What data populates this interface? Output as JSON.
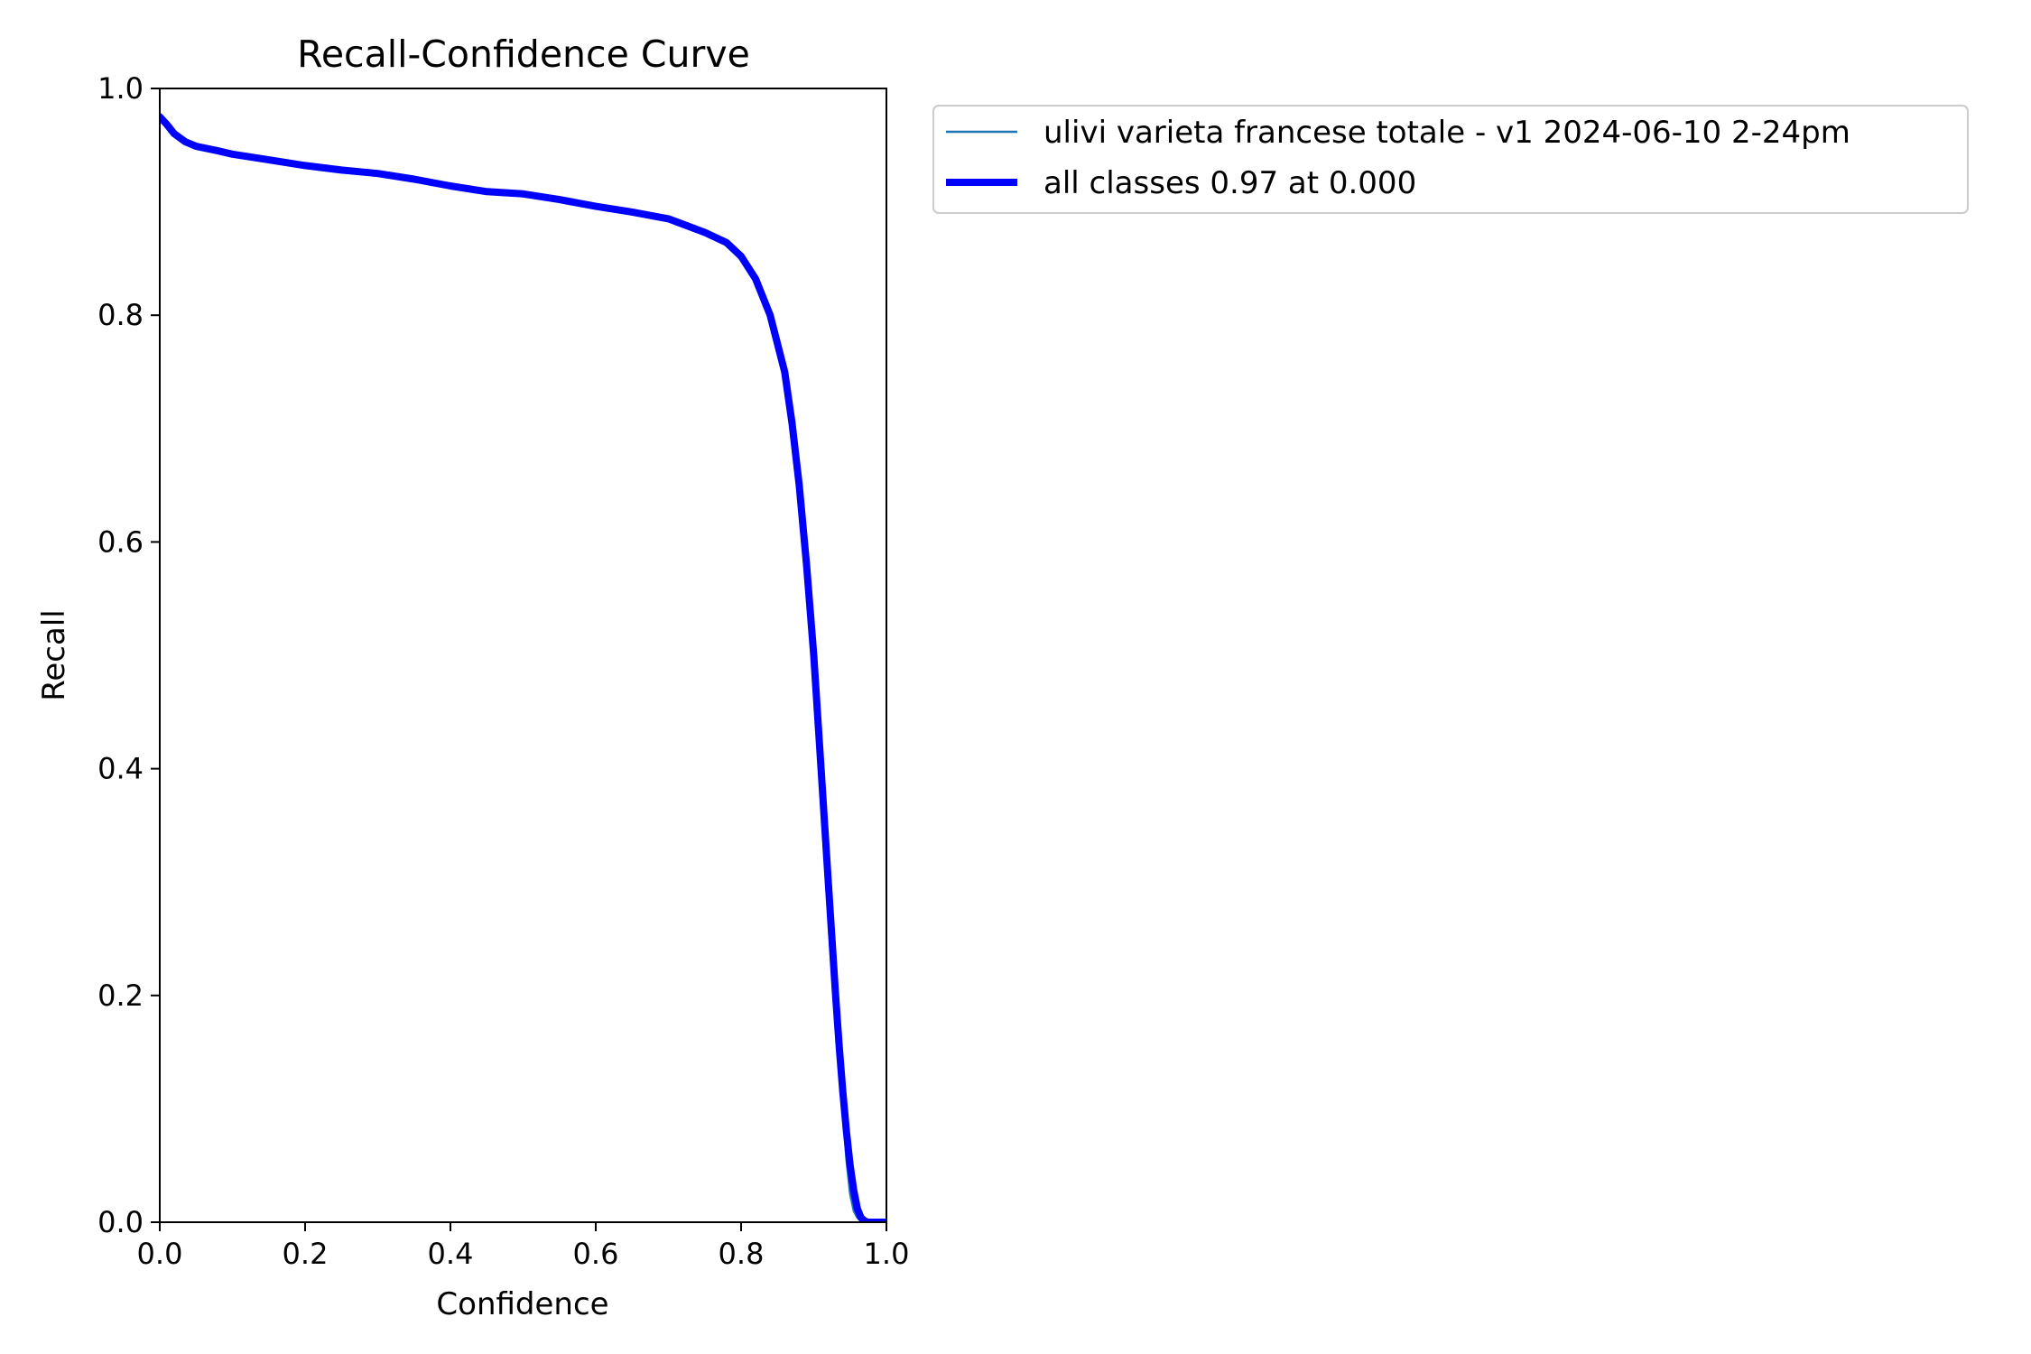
{
  "chart_data": {
    "type": "line",
    "title": "Recall-Confidence Curve",
    "xlabel": "Confidence",
    "ylabel": "Recall",
    "xlim": [
      0,
      1
    ],
    "ylim": [
      0,
      1
    ],
    "x_ticks": [
      "0.0",
      "0.2",
      "0.4",
      "0.6",
      "0.8",
      "1.0"
    ],
    "y_ticks": [
      "0.0",
      "0.2",
      "0.4",
      "0.6",
      "0.8",
      "1.0"
    ],
    "grid": false,
    "legend_position": "outside upper-right",
    "series": [
      {
        "name": "ulivi varieta francese totale - v1 2024-06-10 2-24pm",
        "color": "#1f77b4",
        "width": "thin",
        "x": [
          0.0,
          0.01,
          0.02,
          0.035,
          0.05,
          0.08,
          0.1,
          0.15,
          0.2,
          0.25,
          0.3,
          0.35,
          0.4,
          0.45,
          0.5,
          0.55,
          0.6,
          0.65,
          0.7,
          0.75,
          0.78,
          0.8,
          0.82,
          0.84,
          0.86,
          0.87,
          0.88,
          0.89,
          0.9,
          0.91,
          0.92,
          0.93,
          0.935,
          0.94,
          0.945,
          0.95,
          0.955,
          0.96,
          0.965,
          0.97,
          0.98,
          0.99,
          1.0
        ],
        "y": [
          0.975,
          0.968,
          0.96,
          0.953,
          0.949,
          0.945,
          0.942,
          0.937,
          0.932,
          0.928,
          0.925,
          0.92,
          0.914,
          0.909,
          0.907,
          0.902,
          0.896,
          0.891,
          0.885,
          0.873,
          0.864,
          0.852,
          0.832,
          0.8,
          0.75,
          0.705,
          0.65,
          0.58,
          0.5,
          0.4,
          0.3,
          0.2,
          0.15,
          0.1,
          0.055,
          0.025,
          0.01,
          0.004,
          0.001,
          0.0,
          0.0,
          0.0,
          0.0
        ]
      },
      {
        "name": "all classes 0.97 at 0.000",
        "color": "#0000ff",
        "width": "thick",
        "x": [
          0.0,
          0.01,
          0.02,
          0.035,
          0.05,
          0.08,
          0.1,
          0.15,
          0.2,
          0.25,
          0.3,
          0.35,
          0.4,
          0.45,
          0.5,
          0.55,
          0.6,
          0.65,
          0.7,
          0.75,
          0.78,
          0.8,
          0.82,
          0.84,
          0.86,
          0.87,
          0.88,
          0.89,
          0.9,
          0.91,
          0.92,
          0.93,
          0.935,
          0.94,
          0.945,
          0.95,
          0.955,
          0.96,
          0.965,
          0.97,
          0.975,
          0.98,
          0.99,
          1.0
        ],
        "y": [
          0.975,
          0.968,
          0.96,
          0.953,
          0.949,
          0.945,
          0.942,
          0.937,
          0.932,
          0.928,
          0.925,
          0.92,
          0.914,
          0.909,
          0.907,
          0.902,
          0.896,
          0.891,
          0.885,
          0.873,
          0.864,
          0.852,
          0.832,
          0.8,
          0.75,
          0.705,
          0.65,
          0.58,
          0.5,
          0.4,
          0.3,
          0.2,
          0.155,
          0.115,
          0.08,
          0.05,
          0.028,
          0.012,
          0.004,
          0.001,
          0.0,
          0.0,
          0.0,
          0.0
        ]
      }
    ]
  }
}
